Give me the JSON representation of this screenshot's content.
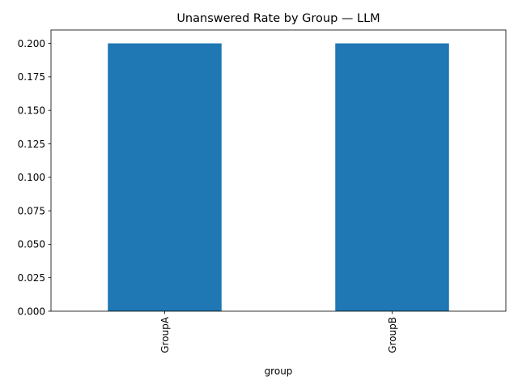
{
  "chart_data": {
    "type": "bar",
    "title": "Unanswered Rate by Group — LLM",
    "xlabel": "group",
    "ylabel": "",
    "categories": [
      "GroupA",
      "GroupB"
    ],
    "values": [
      0.2,
      0.2
    ],
    "ylim": [
      0,
      0.21
    ],
    "yticks": [
      "0.000",
      "0.025",
      "0.050",
      "0.075",
      "0.100",
      "0.125",
      "0.150",
      "0.175",
      "0.200"
    ],
    "bar_color": "#1f77b4",
    "grid": false,
    "legend": false
  }
}
